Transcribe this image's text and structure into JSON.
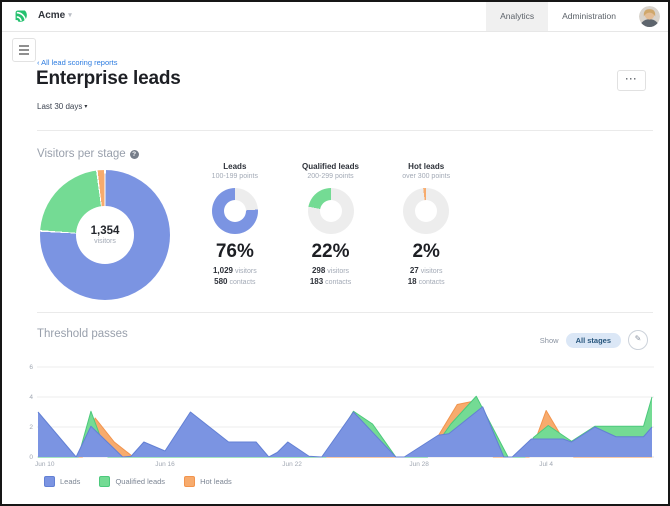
{
  "topbar": {
    "brand": "Acme",
    "brand_caret": "▾",
    "tabs": [
      {
        "label": "Analytics",
        "active": true
      },
      {
        "label": "Administration",
        "active": false
      }
    ]
  },
  "header": {
    "breadcrumb": "‹ All lead scoring reports",
    "title": "Enterprise leads",
    "date_range": "Last 30 days",
    "date_caret": "▾",
    "more_label": "···"
  },
  "visitors_section": {
    "title": "Visitors per stage",
    "help_icon": "?",
    "donut_track_color": "#ededed",
    "total": {
      "value": "1,354",
      "label": "visitors"
    },
    "stages": [
      {
        "name": "Leads",
        "points": "100-199 points",
        "percent": "76%",
        "pct": 76,
        "visitors": "1,029",
        "visitors_label": "visitors",
        "contacts": "580",
        "contacts_label": "contacts",
        "color": "#7b94e2"
      },
      {
        "name": "Qualified leads",
        "points": "200-299 points",
        "percent": "22%",
        "pct": 22,
        "visitors": "298",
        "visitors_label": "visitors",
        "contacts": "183",
        "contacts_label": "contacts",
        "color": "#74db94"
      },
      {
        "name": "Hot leads",
        "points": "over 300 points",
        "percent": "2%",
        "pct": 2,
        "visitors": "27",
        "visitors_label": "visitors",
        "contacts": "18",
        "contacts_label": "contacts",
        "color": "#f7ab6d"
      }
    ]
  },
  "threshold_section": {
    "title": "Threshold passes",
    "show_label": "Show",
    "filter_value": "All stages",
    "pencil_icon": "✎"
  },
  "chart_data": {
    "type": "area",
    "title": "Threshold passes",
    "xlabel": "",
    "ylabel": "",
    "x_max": 29,
    "ylim": [
      0,
      6
    ],
    "y_ticks": [
      0,
      2,
      4,
      6
    ],
    "x_ticks": [
      {
        "x": 0,
        "label": "Jun 10"
      },
      {
        "x": 6,
        "label": "Jun 16"
      },
      {
        "x": 12,
        "label": "Jun 22"
      },
      {
        "x": 18,
        "label": "Jun 28"
      },
      {
        "x": 24,
        "label": "Jul 4"
      }
    ],
    "grid": "horizontal",
    "legend_position": "bottom-left",
    "draw_order": "series drawn in reverse order so Leads renders on top",
    "series": [
      {
        "name": "Leads",
        "fill": "#7b94e2",
        "stroke": "#6380d4",
        "points": [
          [
            0,
            3
          ],
          [
            1.8,
            0
          ],
          [
            2.5,
            2.05
          ],
          [
            4,
            0
          ],
          [
            4.4,
            0.05
          ],
          [
            5,
            1
          ],
          [
            6,
            0.4
          ],
          [
            7.2,
            3
          ],
          [
            9,
            1
          ],
          [
            10.3,
            1
          ],
          [
            10.9,
            0
          ],
          [
            11.3,
            0.3
          ],
          [
            11.8,
            1
          ],
          [
            12.8,
            0.05
          ],
          [
            13.4,
            0
          ],
          [
            14.9,
            3
          ],
          [
            16.9,
            0
          ],
          [
            17.3,
            0
          ],
          [
            18.9,
            1.45
          ],
          [
            19.4,
            1.55
          ],
          [
            21,
            3.35
          ],
          [
            22,
            0
          ],
          [
            22.4,
            0
          ],
          [
            23.3,
            1.2
          ],
          [
            24.8,
            1.2
          ],
          [
            25.2,
            1
          ],
          [
            26.3,
            2
          ],
          [
            27.3,
            1.35
          ],
          [
            28.6,
            1.35
          ],
          [
            29,
            2
          ]
        ]
      },
      {
        "name": "Qualified leads",
        "fill": "#74db94",
        "stroke": "#4cc97c",
        "points": [
          [
            0,
            0
          ],
          [
            1.9,
            0
          ],
          [
            2.5,
            3.05
          ],
          [
            3.3,
            0
          ],
          [
            4,
            0
          ],
          [
            13.6,
            0
          ],
          [
            14.9,
            3.05
          ],
          [
            15.8,
            2.2
          ],
          [
            16.9,
            0
          ],
          [
            18.4,
            0
          ],
          [
            19.5,
            2.2
          ],
          [
            20.7,
            4.05
          ],
          [
            22.2,
            0
          ],
          [
            23,
            0
          ],
          [
            23.4,
            1.3
          ],
          [
            24.1,
            2.1
          ],
          [
            25.2,
            1.05
          ],
          [
            26.3,
            2.05
          ],
          [
            28.6,
            2.05
          ],
          [
            29,
            4
          ]
        ]
      },
      {
        "name": "Hot leads",
        "fill": "#f7ab6d",
        "stroke": "#f2944d",
        "points": [
          [
            0,
            0
          ],
          [
            2.1,
            0
          ],
          [
            2.7,
            2.6
          ],
          [
            3.6,
            1
          ],
          [
            4.5,
            0
          ],
          [
            18.3,
            0
          ],
          [
            19.8,
            3.5
          ],
          [
            20.5,
            3.7
          ],
          [
            21.5,
            0
          ],
          [
            23.2,
            0
          ],
          [
            24,
            3.1
          ],
          [
            25.3,
            0
          ],
          [
            29,
            0
          ]
        ]
      }
    ]
  }
}
